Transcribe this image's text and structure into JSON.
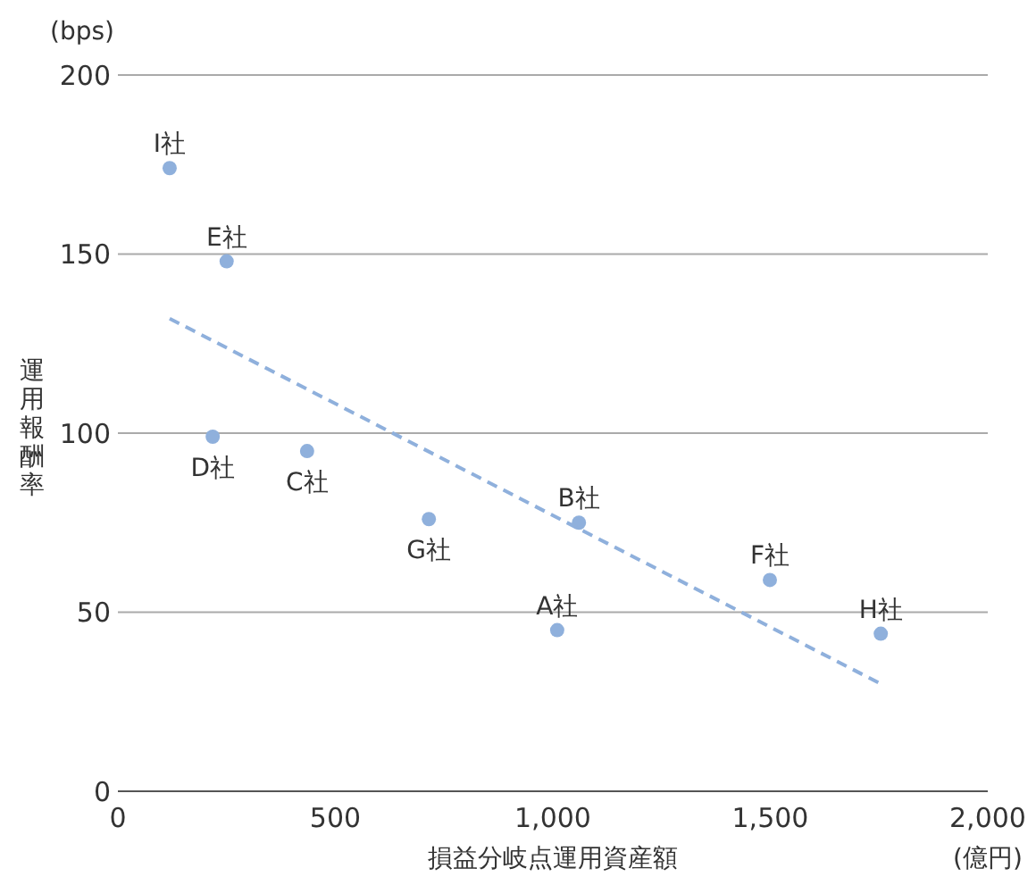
{
  "chart_data": {
    "type": "scatter",
    "xlabel": "損益分岐点運用資産額",
    "ylabel": "運用報酬率",
    "xlim": [
      0,
      2000
    ],
    "xticks": [
      0,
      500,
      {
        "value": 1000,
        "label": "1,000"
      },
      {
        "value": 1500,
        "label": "1,500"
      },
      {
        "value": 2000,
        "label": "2,000"
      }
    ],
    "ylim": [
      0,
      200
    ],
    "yticks": [
      0,
      50,
      100,
      150,
      200
    ],
    "grid": "y",
    "series": [
      {
        "color": "#8fb0dc",
        "marker": "circle",
        "x": [
          119,
          250,
          218,
          435,
          715,
          1010,
          1060,
          1499,
          1754
        ],
        "values": [
          174,
          148,
          99,
          95,
          76,
          45,
          75,
          59,
          44
        ]
      },
      {
        "type": "line",
        "color": "#8fb0dc",
        "line_style": "dashed",
        "marker": "none",
        "x": [
          119,
          1754
        ],
        "values": [
          132,
          30
        ]
      }
    ],
    "annotations": [
      {
        "text": "I社",
        "x": 119,
        "y": 174
      },
      {
        "text": "E社",
        "x": 250,
        "y": 148
      },
      {
        "text": "D社",
        "x": 218,
        "y": 99
      },
      {
        "text": "C社",
        "x": 435,
        "y": 95
      },
      {
        "text": "G社",
        "x": 715,
        "y": 76
      },
      {
        "text": "A社",
        "x": 1010,
        "y": 45
      },
      {
        "text": "B社",
        "x": 1060,
        "y": 75
      },
      {
        "text": "F社",
        "x": 1499,
        "y": 59
      },
      {
        "text": "H社",
        "x": 1754,
        "y": 44
      },
      "(bps)",
      "(億円)"
    ]
  }
}
